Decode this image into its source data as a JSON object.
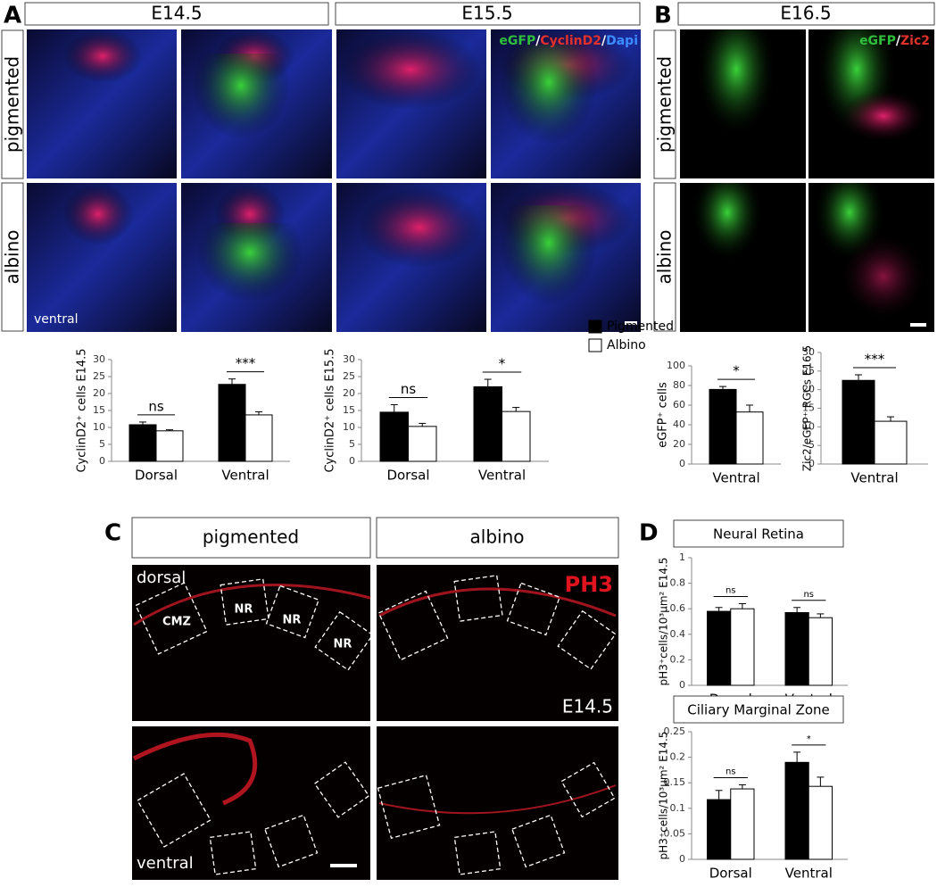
{
  "figure": {
    "A": {
      "letter": "A",
      "headers": [
        "E14.5",
        "E15.5"
      ],
      "rows": [
        "pigmented",
        "albino"
      ],
      "corner": "ventral",
      "overlay": [
        "eGFP",
        "/",
        "CyclinD2",
        "/",
        "Dapi"
      ]
    },
    "B": {
      "letter": "B",
      "header": "E16.5",
      "rows": [
        "pigmented",
        "albino"
      ],
      "overlay": [
        "eGFP",
        "/",
        "Zic2"
      ]
    },
    "C": {
      "letter": "C",
      "headers": [
        "pigmented",
        "albino"
      ],
      "dorsal": "dorsal",
      "ventral": "ventral",
      "boxes": [
        "CMZ",
        "NR",
        "NR",
        "NR"
      ],
      "stain": "PH3",
      "stage": "E14.5"
    },
    "D": {
      "letter": "D"
    }
  },
  "chart_data": [
    {
      "type": "bar",
      "y_label": "CyclinD2⁺ cells E14.5",
      "categories": [
        "Dorsal",
        "Ventral"
      ],
      "series": [
        {
          "name": "Pigmented",
          "color": "#000000",
          "values": [
            10.8,
            22.7
          ],
          "errors": [
            0.8,
            1.6
          ]
        },
        {
          "name": "Albino",
          "color": "#ffffff",
          "values": [
            9,
            13.7
          ],
          "errors": [
            0.3,
            0.9
          ]
        }
      ],
      "annotations": [
        "ns",
        "***"
      ],
      "ylim": [
        0,
        30
      ],
      "yticks": [
        0,
        5,
        10,
        15,
        20,
        25,
        30
      ]
    },
    {
      "type": "bar",
      "y_label": "CyclinD2⁺ cells E15.5",
      "categories": [
        "Dorsal",
        "Ventral"
      ],
      "series": [
        {
          "name": "Pigmented",
          "color": "#000000",
          "values": [
            14.5,
            22
          ],
          "errors": [
            2.2,
            2.2
          ]
        },
        {
          "name": "Albino",
          "color": "#ffffff",
          "values": [
            10.3,
            14.7
          ],
          "errors": [
            0.9,
            1.2
          ]
        }
      ],
      "annotations": [
        "ns",
        "*"
      ],
      "ylim": [
        0,
        30
      ],
      "yticks": [
        0,
        5,
        10,
        15,
        20,
        25,
        30
      ],
      "legend": "right"
    },
    {
      "type": "bar",
      "y_label": "eGFP⁺ cells",
      "categories": [
        "Ventral"
      ],
      "series": [
        {
          "name": "Pigmented",
          "color": "#000000",
          "values": [
            76
          ],
          "errors": [
            3
          ]
        },
        {
          "name": "Albino",
          "color": "#ffffff",
          "values": [
            53
          ],
          "errors": [
            7
          ]
        }
      ],
      "annotations": [
        "*"
      ],
      "ylim": [
        0,
        100
      ],
      "yticks": [
        0,
        20,
        40,
        60,
        80,
        100
      ]
    },
    {
      "type": "bar",
      "y_label": "Zic2/eGFP⁺ RGCs E16.5",
      "categories": [
        "Ventral"
      ],
      "series": [
        {
          "name": "Pigmented",
          "color": "#000000",
          "values": [
            22.5
          ],
          "errors": [
            1.5
          ]
        },
        {
          "name": "Albino",
          "color": "#ffffff",
          "values": [
            11.5
          ],
          "errors": [
            1.2
          ]
        }
      ],
      "annotations": [
        "***"
      ],
      "ylim": [
        0,
        30
      ],
      "yticks": [
        0,
        5,
        10,
        15,
        20,
        25,
        30
      ]
    },
    {
      "type": "bar",
      "title": "Neural Retina",
      "y_label": "pH3⁺cells/10³µm² E14.5",
      "categories": [
        "Dorsal",
        "Ventral"
      ],
      "series": [
        {
          "name": "Pigmented",
          "color": "#000000",
          "values": [
            0.58,
            0.57
          ],
          "errors": [
            0.03,
            0.04
          ]
        },
        {
          "name": "Albino",
          "color": "#ffffff",
          "values": [
            0.6,
            0.53
          ],
          "errors": [
            0.04,
            0.03
          ]
        }
      ],
      "annotations": [
        "ns",
        "ns"
      ],
      "ylim": [
        0,
        1
      ],
      "yticks": [
        0,
        0.2,
        0.4,
        0.6,
        0.8,
        1
      ]
    },
    {
      "type": "bar",
      "title": "Ciliary Marginal Zone",
      "y_label": "pH3⁺cells/10³µm² E14.5",
      "categories": [
        "Dorsal",
        "Ventral"
      ],
      "series": [
        {
          "name": "Pigmented",
          "color": "#000000",
          "values": [
            0.117,
            0.19
          ],
          "errors": [
            0.018,
            0.02
          ]
        },
        {
          "name": "Albino",
          "color": "#ffffff",
          "values": [
            0.138,
            0.143
          ],
          "errors": [
            0.008,
            0.018
          ]
        }
      ],
      "annotations": [
        "ns",
        "*"
      ],
      "ylim": [
        0,
        0.25
      ],
      "yticks": [
        0,
        0.05,
        0.1,
        0.15,
        0.2,
        0.25
      ]
    }
  ]
}
